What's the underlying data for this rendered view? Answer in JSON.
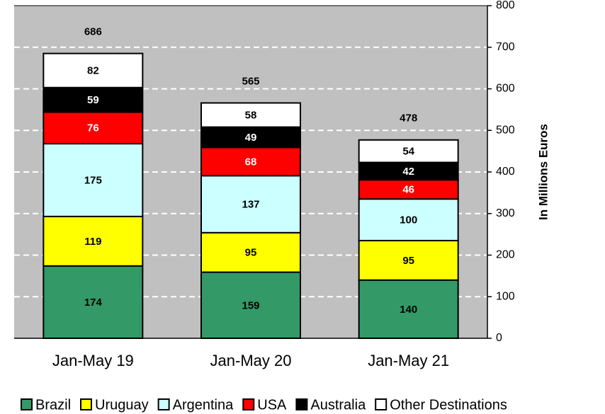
{
  "chart_data": {
    "type": "stacked_bar",
    "y_label": "In Millions Euros",
    "categories": [
      "Jan-May 19",
      "Jan-May 20",
      "Jan-May 21"
    ],
    "series": [
      {
        "name": "Brazil",
        "color": "#339966",
        "values": [
          174,
          159,
          140
        ]
      },
      {
        "name": "Uruguay",
        "color": "#ffff00",
        "values": [
          119,
          95,
          95
        ]
      },
      {
        "name": "Argentina",
        "color": "#ccffff",
        "values": [
          175,
          137,
          100
        ]
      },
      {
        "name": "USA",
        "color": "#ff0000",
        "values": [
          76,
          68,
          46
        ]
      },
      {
        "name": "Australia",
        "color": "#000000",
        "values": [
          59,
          49,
          42
        ]
      },
      {
        "name": "Other Destinations",
        "color": "#ffffff",
        "values": [
          82,
          58,
          54
        ]
      }
    ],
    "totals": [
      686,
      565,
      478
    ],
    "ylim": [
      0,
      800
    ],
    "yticks": [
      0,
      100,
      200,
      300,
      400,
      500,
      600,
      700,
      800
    ],
    "grid": true,
    "legend": "bottom",
    "background": "#c0c0c0"
  }
}
